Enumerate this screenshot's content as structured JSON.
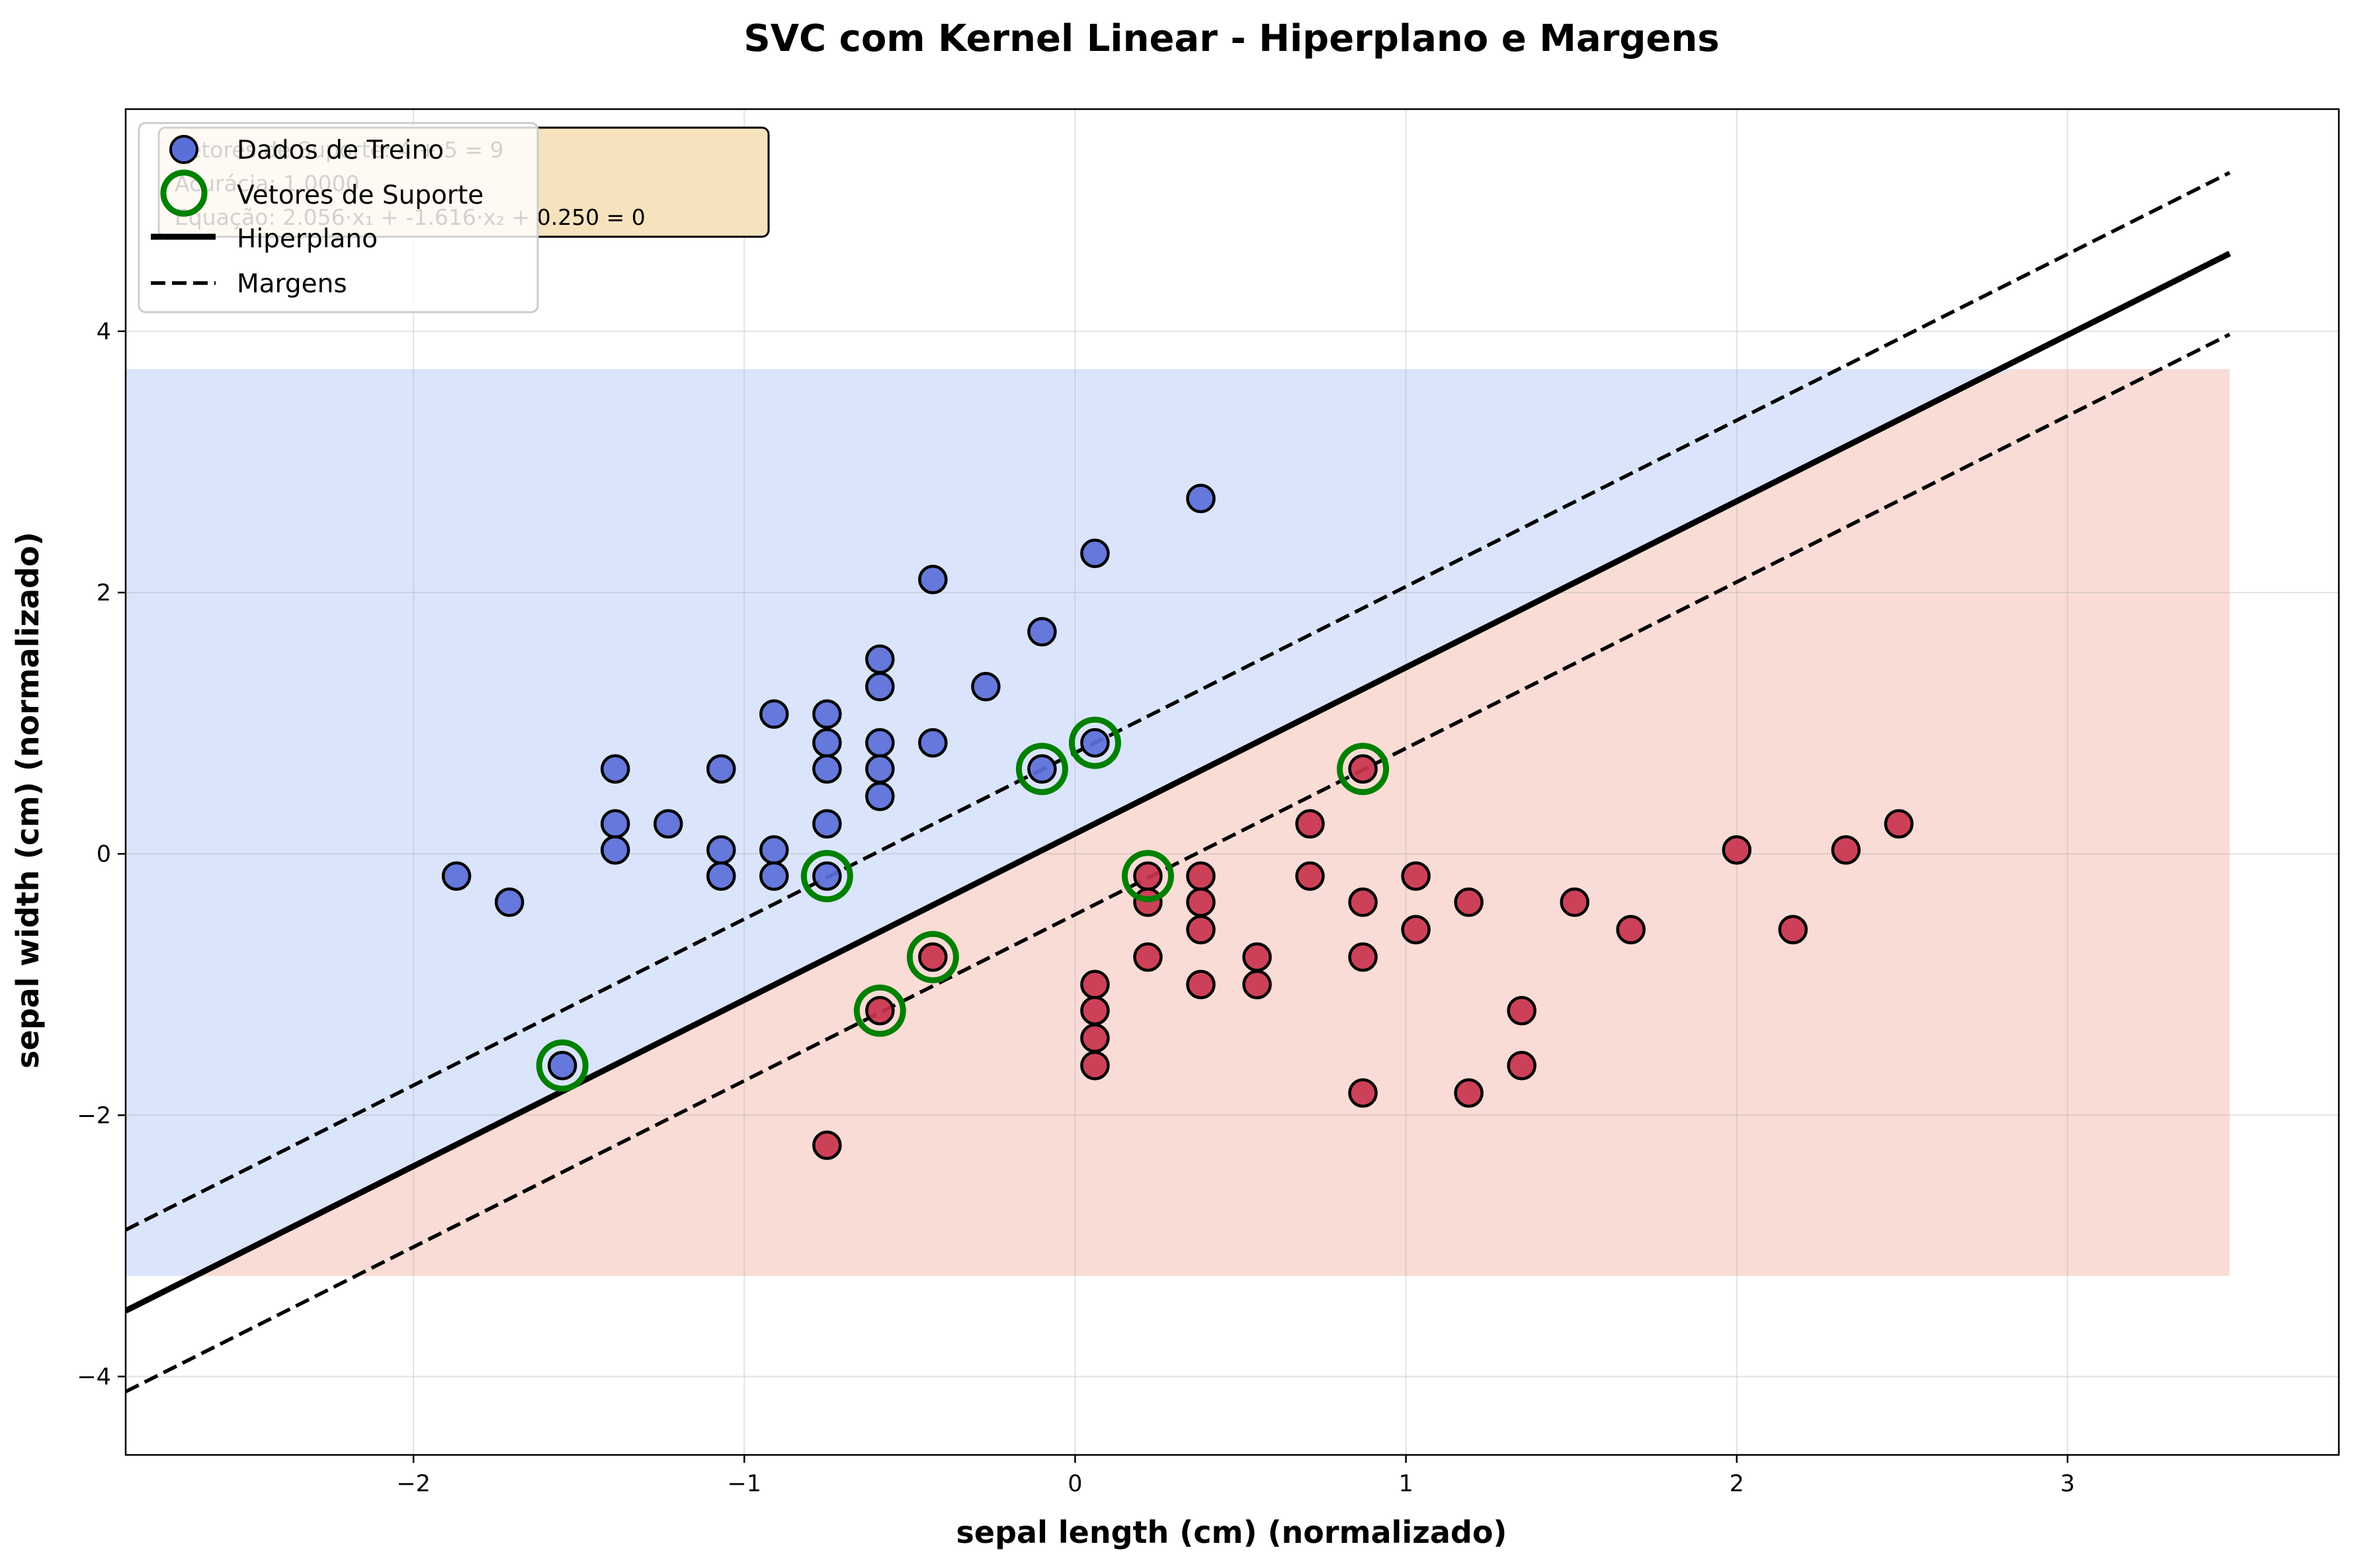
{
  "chart_data": {
    "type": "scatter",
    "title": "SVC com Kernel Linear - Hiperplano e Margens",
    "xlabel": "sepal length (cm) (normalizado)",
    "ylabel": "sepal width (cm) (normalizado)",
    "xlim": [
      -2.87,
      3.82
    ],
    "ylim": [
      -4.6,
      5.7
    ],
    "xticks": [
      -2,
      -1,
      0,
      1,
      2,
      3
    ],
    "yticks": [
      -4,
      -2,
      0,
      2,
      4
    ],
    "xtick_labels": [
      "−2",
      "−1",
      "0",
      "1",
      "2",
      "3"
    ],
    "ytick_labels": [
      "−4",
      "−2",
      "0",
      "2",
      "4"
    ],
    "grid": true,
    "legend_position": "top-left",
    "legend": {
      "train": "Dados de Treino",
      "sv": "Vetores de Suporte",
      "hyperplane": "Hiperplano",
      "margins": "Margens"
    },
    "info_box": {
      "lines": [
        "Vetores de Suporte: 4 + 5 = 9",
        "Acurácia: 1.0000",
        "Equação: 2.056·x₁ + -1.616·x₂ + 0.250 = 0"
      ]
    },
    "regions": {
      "x_range": [
        -2.87,
        3.49
      ],
      "y_range": [
        -3.23,
        3.71
      ],
      "positive_color": "#dae5fb",
      "negative_color": "#f9dcd5"
    },
    "hyperplane": {
      "w1": 2.056,
      "w2": -1.616,
      "b": 0.25,
      "x_range": [
        -2.87,
        3.49
      ]
    },
    "colors": {
      "class_a": "#5b6fd8",
      "class_a_dark": "#3f51c8",
      "class_b": "#c8334d",
      "class_b_dark": "#c2082b",
      "support_vector": "#008000"
    },
    "series": [
      {
        "class": "a",
        "points": [
          [
            -1.87,
            -0.17
          ],
          [
            -1.71,
            -0.37
          ],
          [
            -1.55,
            -1.62
          ],
          [
            -1.39,
            0.65
          ],
          [
            -1.39,
            0.23
          ],
          [
            -1.39,
            0.03
          ],
          [
            -1.23,
            0.23
          ],
          [
            -1.07,
            0.65
          ],
          [
            -1.07,
            0.03
          ],
          [
            -1.07,
            -0.17
          ],
          [
            -0.91,
            1.07
          ],
          [
            -0.91,
            0.03
          ],
          [
            -0.91,
            -0.17
          ],
          [
            -0.75,
            1.07
          ],
          [
            -0.75,
            0.85
          ],
          [
            -0.75,
            0.65
          ],
          [
            -0.75,
            0.23
          ],
          [
            -0.75,
            -0.17
          ],
          [
            -0.59,
            1.49
          ],
          [
            -0.59,
            1.28
          ],
          [
            -0.59,
            0.85
          ],
          [
            -0.59,
            0.65
          ],
          [
            -0.59,
            0.44
          ],
          [
            -0.43,
            2.1
          ],
          [
            -0.43,
            0.85
          ],
          [
            -0.27,
            1.28
          ],
          [
            -0.1,
            1.7
          ],
          [
            -0.1,
            0.65
          ],
          [
            0.06,
            2.3
          ],
          [
            0.06,
            0.85
          ],
          [
            0.38,
            2.72
          ]
        ]
      },
      {
        "class": "b",
        "points": [
          [
            -0.75,
            -2.23
          ],
          [
            -0.59,
            -1.2
          ],
          [
            -0.43,
            -0.79
          ],
          [
            0.06,
            -1.0
          ],
          [
            0.06,
            -1.2
          ],
          [
            0.06,
            -1.41
          ],
          [
            0.06,
            -1.62
          ],
          [
            0.22,
            -0.17
          ],
          [
            0.22,
            -0.37
          ],
          [
            0.22,
            -0.79
          ],
          [
            0.38,
            -0.17
          ],
          [
            0.38,
            -0.37
          ],
          [
            0.38,
            -0.58
          ],
          [
            0.38,
            -1.0
          ],
          [
            0.55,
            -0.79
          ],
          [
            0.55,
            -1.0
          ],
          [
            0.71,
            0.23
          ],
          [
            0.71,
            -0.17
          ],
          [
            0.87,
            0.65
          ],
          [
            0.87,
            -0.37
          ],
          [
            0.87,
            -0.79
          ],
          [
            0.87,
            -1.83
          ],
          [
            1.03,
            -0.17
          ],
          [
            1.03,
            -0.58
          ],
          [
            1.19,
            -0.37
          ],
          [
            1.19,
            -1.83
          ],
          [
            1.35,
            -1.2
          ],
          [
            1.35,
            -1.62
          ],
          [
            1.51,
            -0.37
          ],
          [
            1.68,
            -0.58
          ],
          [
            2.0,
            0.03
          ],
          [
            2.17,
            -0.58
          ],
          [
            2.33,
            0.03
          ],
          [
            2.49,
            0.23
          ]
        ]
      }
    ],
    "support_vectors": [
      [
        -1.55,
        -1.62
      ],
      [
        -0.75,
        -0.17
      ],
      [
        -0.1,
        0.65
      ],
      [
        0.06,
        0.85
      ],
      [
        -0.59,
        -1.2
      ],
      [
        -0.43,
        -0.79
      ],
      [
        0.22,
        -0.17
      ],
      [
        0.87,
        0.65
      ]
    ]
  }
}
